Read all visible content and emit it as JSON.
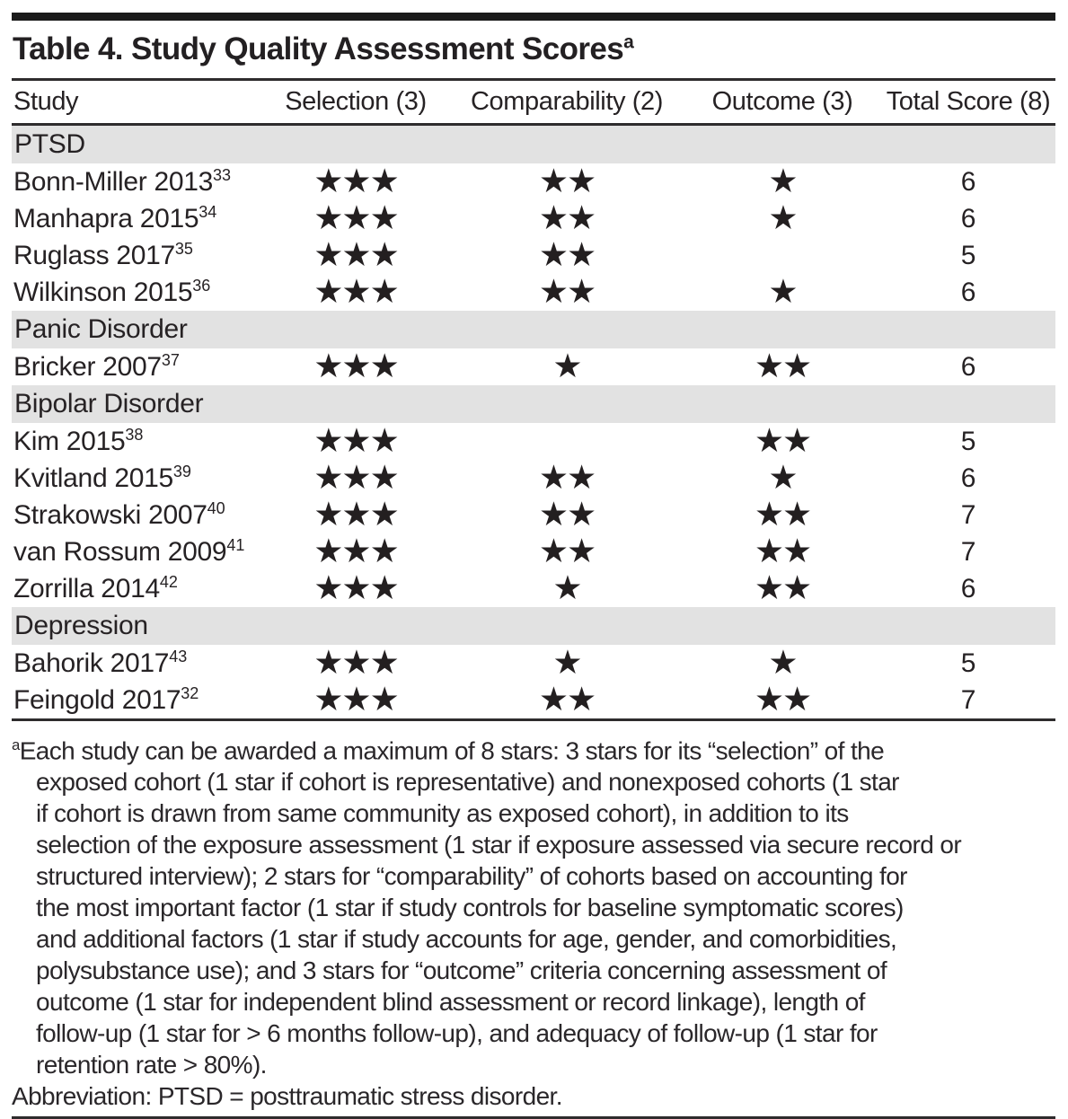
{
  "title": {
    "text": "Table 4. Study Quality Assessment Scores",
    "footnote_marker": "a"
  },
  "columns": [
    "Study",
    "Selection (3)",
    "Comparability (2)",
    "Outcome (3)",
    "Total Score (8)"
  ],
  "star_char": "★",
  "sections": [
    {
      "label": "PTSD",
      "rows": [
        {
          "study": "Bonn-Miller 2013",
          "ref": "33",
          "selection": 3,
          "comparability": 2,
          "outcome": 1,
          "total": "6"
        },
        {
          "study": "Manhapra 2015",
          "ref": "34",
          "selection": 3,
          "comparability": 2,
          "outcome": 1,
          "total": "6"
        },
        {
          "study": "Ruglass 2017",
          "ref": "35",
          "selection": 3,
          "comparability": 2,
          "outcome": 0,
          "total": "5"
        },
        {
          "study": "Wilkinson 2015",
          "ref": "36",
          "selection": 3,
          "comparability": 2,
          "outcome": 1,
          "total": "6"
        }
      ]
    },
    {
      "label": "Panic Disorder",
      "rows": [
        {
          "study": "Bricker 2007",
          "ref": "37",
          "selection": 3,
          "comparability": 1,
          "outcome": 2,
          "total": "6"
        }
      ]
    },
    {
      "label": "Bipolar Disorder",
      "rows": [
        {
          "study": "Kim 2015",
          "ref": "38",
          "selection": 3,
          "comparability": 0,
          "outcome": 2,
          "total": "5"
        },
        {
          "study": "Kvitland 2015",
          "ref": "39",
          "selection": 3,
          "comparability": 2,
          "outcome": 1,
          "total": "6"
        },
        {
          "study": "Strakowski 2007",
          "ref": "40",
          "selection": 3,
          "comparability": 2,
          "outcome": 2,
          "total": "7"
        },
        {
          "study": "van Rossum 2009",
          "ref": "41",
          "selection": 3,
          "comparability": 2,
          "outcome": 2,
          "total": "7"
        },
        {
          "study": "Zorrilla 2014",
          "ref": "42",
          "selection": 3,
          "comparability": 1,
          "outcome": 2,
          "total": "6"
        }
      ]
    },
    {
      "label": "Depression",
      "rows": [
        {
          "study": "Bahorik 2017",
          "ref": "43",
          "selection": 3,
          "comparability": 1,
          "outcome": 1,
          "total": "5"
        },
        {
          "study": "Feingold 2017",
          "ref": "32",
          "selection": 3,
          "comparability": 2,
          "outcome": 2,
          "total": "7"
        }
      ]
    }
  ],
  "footnote": {
    "marker": "a",
    "lines": [
      "Each study can be awarded a maximum of 8 stars: 3 stars for its “selection” of the",
      "exposed cohort (1 star if cohort is representative) and nonexposed cohorts (1 star",
      "if cohort is drawn from same community as exposed cohort), in addition to its",
      "selection of the exposure assessment (1 star if exposure assessed via secure record or",
      "structured interview); 2 stars for “comparability” of cohorts based on accounting for",
      "the most important factor (1 star if study controls for baseline symptomatic scores)",
      "and additional factors (1 star if study accounts for age, gender, and comorbidities,",
      "polysubstance use); and 3 stars for “outcome” criteria concerning assessment of",
      "outcome (1 star for independent blind assessment or record linkage), length of",
      "follow-up (1 star for > 6 months follow-up), and adequacy of follow-up (1 star for",
      "retention rate > 80%)."
    ]
  },
  "abbreviation": "Abbreviation: PTSD = posttraumatic stress disorder.",
  "colors": {
    "section_bg": "#e2e2e2",
    "text": "#262224",
    "rule": "#2e2c2d",
    "bar": "#1b1b1b"
  }
}
